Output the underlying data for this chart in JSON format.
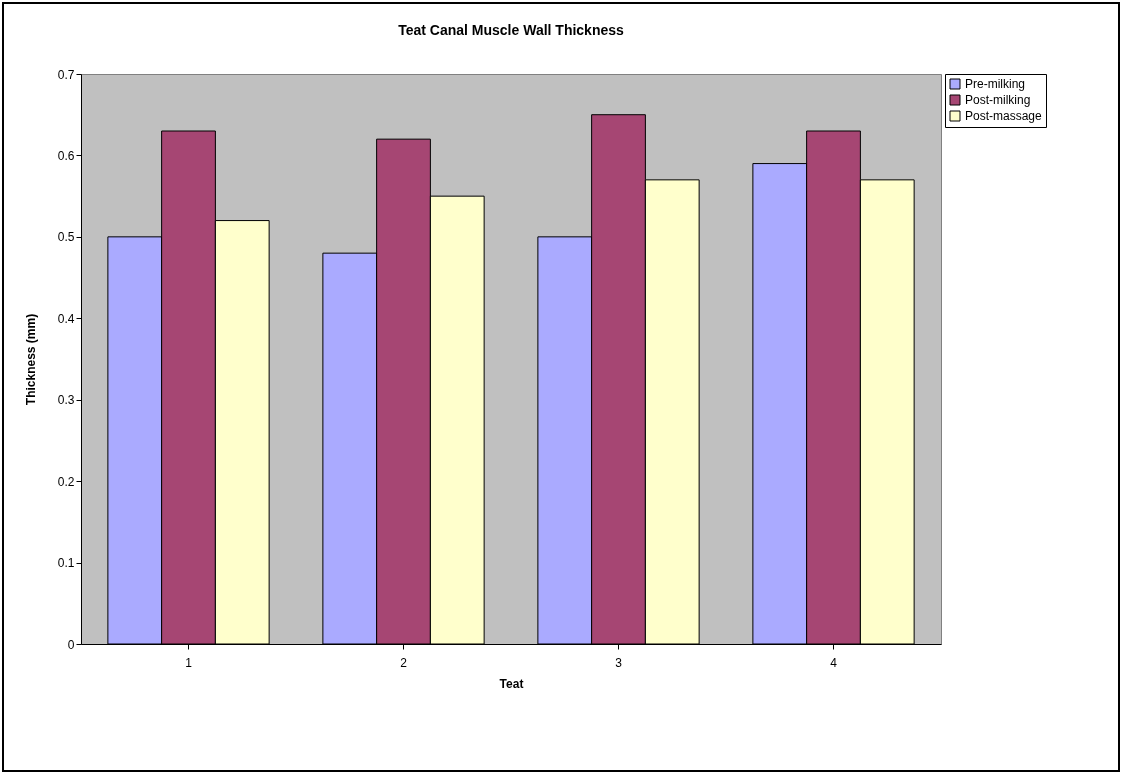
{
  "chart_data": {
    "type": "bar",
    "title": "Teat Canal Muscle Wall Thickness",
    "xlabel": "Teat",
    "ylabel": "Thickness (mm)",
    "categories": [
      "1",
      "2",
      "3",
      "4"
    ],
    "series": [
      {
        "name": "Pre-milking",
        "color": "#aaaaff",
        "values": [
          0.5,
          0.48,
          0.5,
          0.59
        ]
      },
      {
        "name": "Post-milking",
        "color": "#a64673",
        "values": [
          0.63,
          0.62,
          0.65,
          0.63
        ]
      },
      {
        "name": "Post-massage",
        "color": "#ffffcc",
        "values": [
          0.52,
          0.55,
          0.57,
          0.57
        ]
      }
    ],
    "ylim": [
      0,
      0.7
    ],
    "yticks": [
      0,
      0.1,
      0.2,
      0.3,
      0.4,
      0.5,
      0.6,
      0.7
    ],
    "grid": false,
    "legend": "top right"
  }
}
